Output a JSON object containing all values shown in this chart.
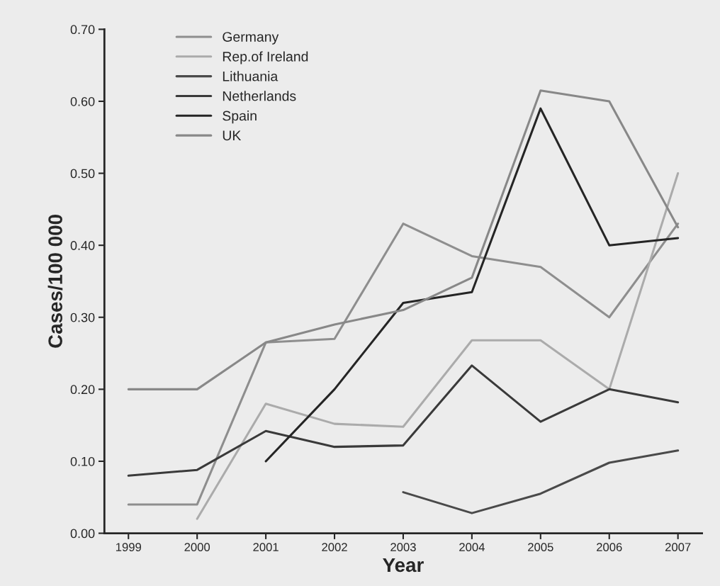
{
  "chart_data": {
    "type": "line",
    "xlabel": "Year",
    "ylabel": "Cases/100 000",
    "categories": [
      "1999",
      "2000",
      "2001",
      "2002",
      "2003",
      "2004",
      "2005",
      "2006",
      "2007"
    ],
    "series": [
      {
        "name": "Germany",
        "color": "#8e8e8e",
        "values": [
          0.04,
          0.04,
          0.265,
          0.27,
          0.43,
          0.385,
          0.37,
          0.3,
          0.43
        ]
      },
      {
        "name": "Rep.of Ireland",
        "color": "#ababab",
        "values": [
          null,
          0.02,
          0.18,
          0.152,
          0.148,
          0.268,
          0.268,
          0.2,
          0.5
        ]
      },
      {
        "name": "Lithuania",
        "color": "#4a4a4a",
        "values": [
          null,
          null,
          null,
          null,
          0.057,
          0.028,
          0.055,
          0.098,
          0.115
        ]
      },
      {
        "name": "Netherlands",
        "color": "#3a3a3a",
        "values": [
          0.08,
          0.088,
          0.142,
          0.12,
          0.122,
          0.233,
          0.155,
          0.2,
          0.182
        ]
      },
      {
        "name": "Spain",
        "color": "#252525",
        "values": [
          null,
          null,
          0.1,
          0.2,
          0.32,
          0.335,
          0.59,
          0.4,
          0.41
        ]
      },
      {
        "name": "UK",
        "color": "#888888",
        "values": [
          0.2,
          0.2,
          0.265,
          0.29,
          0.31,
          0.355,
          0.615,
          0.6,
          0.425
        ]
      }
    ],
    "ylim": [
      0,
      0.7
    ],
    "yticks": [
      {
        "value": 0,
        "label": "0.00"
      },
      {
        "value": 0.1,
        "label": "0.10"
      },
      {
        "value": 0.2,
        "label": "0.20"
      },
      {
        "value": 0.3,
        "label": "0.30"
      },
      {
        "value": 0.4,
        "label": "0.40"
      },
      {
        "value": 0.5,
        "label": "0.50"
      },
      {
        "value": 0.6,
        "label": "0.60"
      },
      {
        "value": 0.7,
        "label": "0.70"
      }
    ],
    "legend": "top left",
    "grid": false,
    "marker": "none",
    "line_style": "solid"
  }
}
